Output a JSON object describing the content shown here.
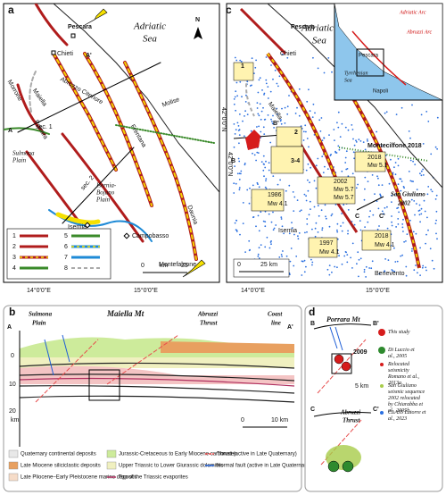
{
  "panel_a": {
    "label": "a",
    "pescara": "Pescara",
    "chieti": "Chieti",
    "a_prime": "A'",
    "sea": [
      "Adriatic",
      "Sea"
    ],
    "north": "N",
    "abruzzo": "Abruzzo Citeriore",
    "morrone": "Morrone",
    "maiella": "Maiella",
    "porrara": "Porrara",
    "sec1": "sec. 1",
    "a": "A",
    "sulmona": [
      "Sulmona",
      "Plain"
    ],
    "frentana": "Frentana",
    "molise": "Molise",
    "sec2": "sec. 2",
    "isernia_plain": [
      "Isernia-",
      "Bojano",
      "Plain"
    ],
    "isernia": "Isernia",
    "campobasso": "Campobasso",
    "montefalcone": "Montefalcone",
    "daunia": "Daunia",
    "legend": [
      "1",
      "2",
      "3",
      "4",
      "5",
      "6",
      "7",
      "8"
    ],
    "scale": [
      "0",
      "km",
      "25"
    ],
    "lon": [
      "14°0'0\"E",
      "15°0'0\"E"
    ],
    "lat": "42°0'0\"N"
  },
  "panel_c": {
    "label": "c",
    "pescara": "Pescara",
    "chieti": "Chieti",
    "sea": [
      "Adriatic",
      "Sea"
    ],
    "maiella": "Maiella",
    "ev1": "1",
    "b_prime": "B'",
    "ev2": "2",
    "ev34": "3-4",
    "b": "B",
    "montecilfone": "Montecilfone 2018",
    "m2018a": [
      "2018",
      "Mw 5.1"
    ],
    "m2002": [
      "2002",
      "Mw 5.7",
      "Mw 5.7"
    ],
    "sangiuliano": [
      "San Giuliano",
      "2002"
    ],
    "m1986": [
      "1986",
      "Mw 4.1"
    ],
    "c_prime": "C'",
    "c": "C",
    "isernia": "Isernia",
    "m2018b": [
      "2018",
      "Mw 4.1"
    ],
    "m1997": [
      "1997",
      "Mw 4.1"
    ],
    "scale": [
      "0",
      "25 km"
    ],
    "benevento": "Benevento",
    "lon": [
      "14°0'0\"E",
      "15°0'0\"E"
    ],
    "lat": "42°0'0\"N",
    "inset": {
      "adriatic_arc": "Adriatic Arc",
      "abruzzi_arc": "Abruzzi Arc",
      "pescara": "Pescara",
      "tyrrhenian": [
        "Tyrrhenian",
        "Sea"
      ],
      "napoli": "Napoli"
    }
  },
  "panel_b": {
    "label": "b",
    "sulmona": [
      "Sulmona",
      "Plain"
    ],
    "maiella": "Maiella Mt",
    "abruzzi": [
      "Abruzzi",
      "Thrust"
    ],
    "coast": [
      "Coast",
      "line"
    ],
    "a": "A",
    "a_prime": "A'",
    "depth": [
      "0",
      "10",
      "20",
      "km"
    ],
    "scale": [
      "0",
      "10 km"
    ],
    "legend": [
      "Quaternary continental deposits",
      "Late Miocene siliciclastic deposits",
      "Late Pliocene–Early Pleistocene marine deposits",
      "Jurassic-Cretaceous to Early Miocene carbonates",
      "Upper Triassic to Lower Giurassic dolomites",
      "Top of the Triassic evaporites",
      "Thrust (active in Late Quaternary)",
      "Normal fault (active in Late Quaternary)"
    ]
  },
  "panel_d": {
    "label": "d",
    "b": "B",
    "porrara": "Porrara Mt",
    "b_prime": "B'",
    "ev2009": "2009",
    "scale": "5 km",
    "c": "C",
    "abruzzi": [
      "Abruzzi",
      "Thrust"
    ],
    "c_prime": "C'",
    "legend": [
      "This study",
      "Di Luccio et al., 2005",
      "Relocated seismicity Romano et al., 2013a",
      "San Giuliano seismic sequence 2002 relocated by Chiarabba et al., 2005b",
      "CLASS Latorre et al., 2023"
    ]
  }
}
